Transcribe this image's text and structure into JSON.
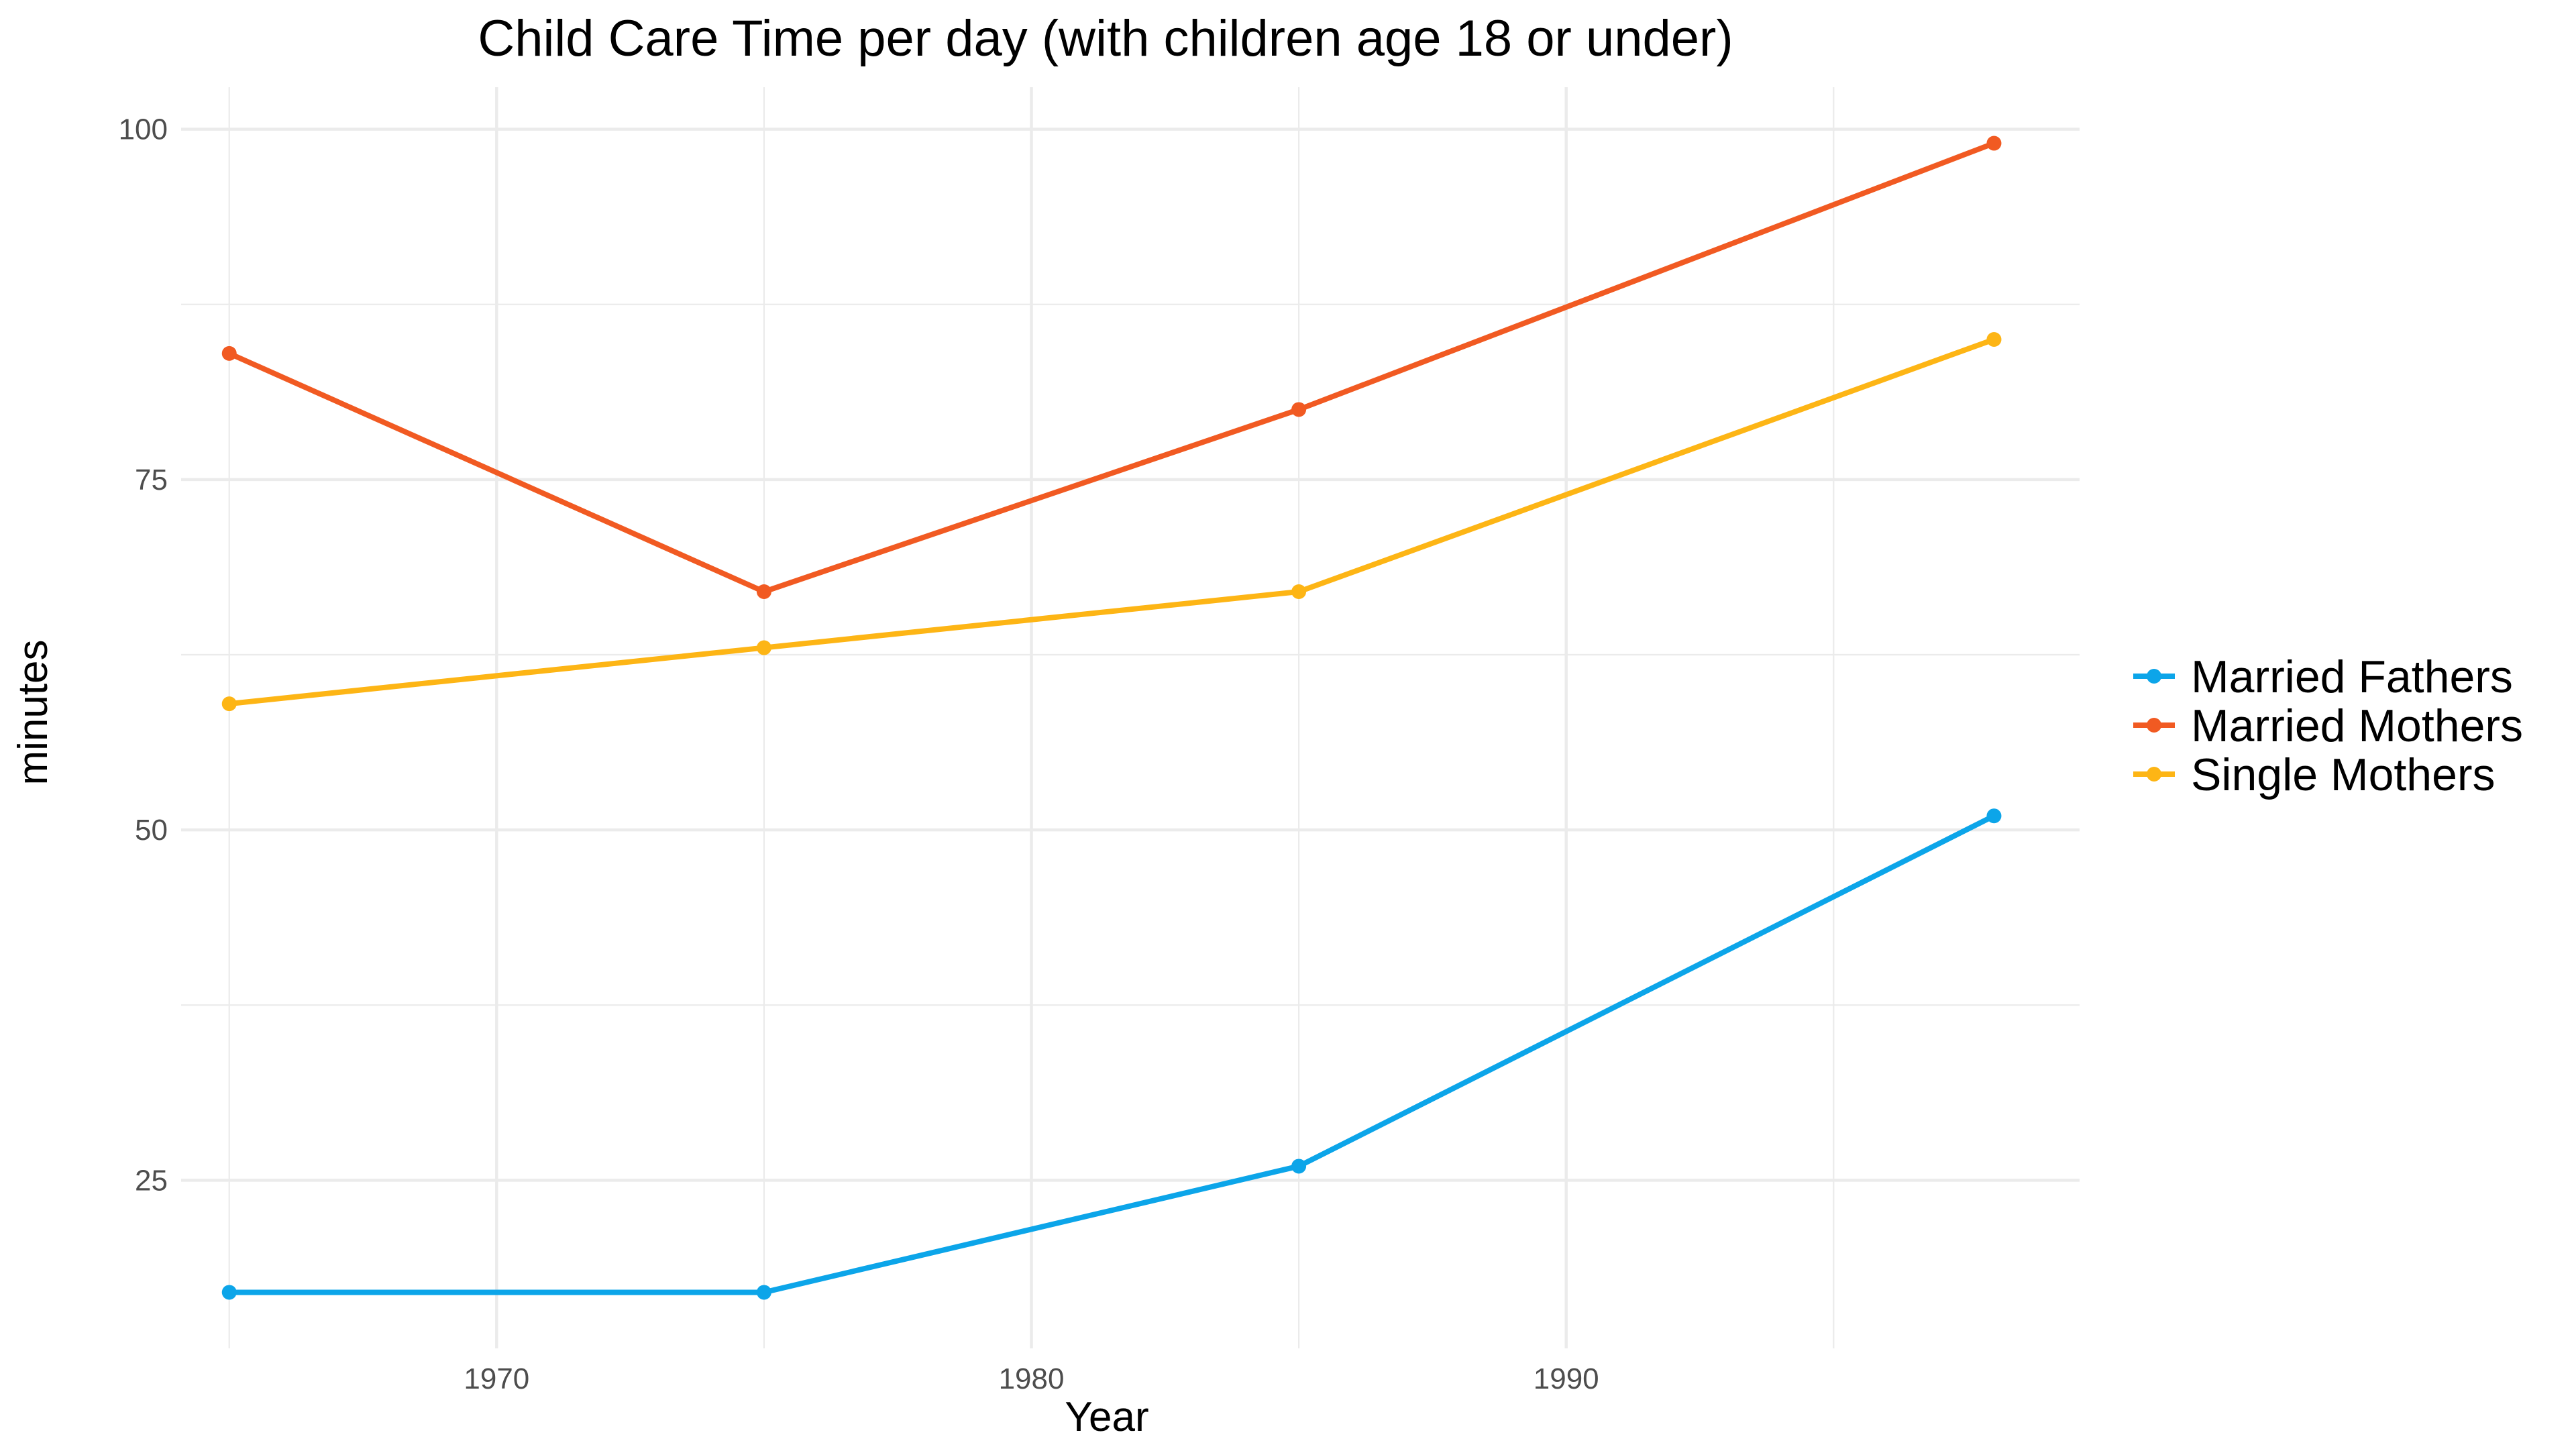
{
  "chart_data": {
    "type": "line",
    "title": "Child Care Time per day (with children age 18 or under)",
    "xlabel": "Year",
    "ylabel": "minutes",
    "x": [
      1965,
      1975,
      1985,
      1998
    ],
    "series": [
      {
        "name": "Married Fathers",
        "values": [
          17,
          17,
          26,
          51
        ],
        "color": "#0ca5e9"
      },
      {
        "name": "Married Mothers",
        "values": [
          84,
          67,
          80,
          99
        ],
        "color": "#f15a22"
      },
      {
        "name": "Single Mothers",
        "values": [
          59,
          63,
          67,
          85
        ],
        "color": "#fdb515"
      }
    ],
    "xticks": [
      1970,
      1980,
      1990
    ],
    "yticks": [
      25,
      50,
      75,
      100
    ],
    "xlim": [
      1964.1,
      1999.6
    ],
    "ylim": [
      13,
      103
    ],
    "grid": true,
    "legend_position": "right"
  }
}
